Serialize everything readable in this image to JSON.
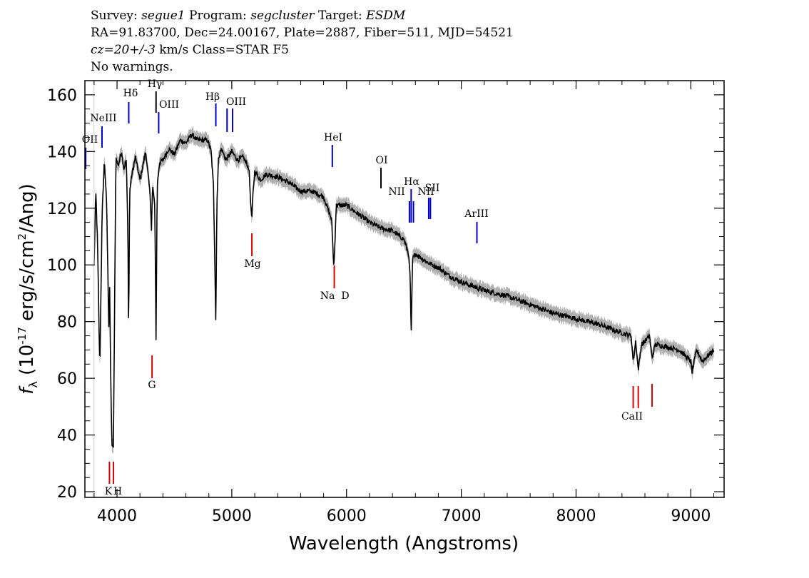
{
  "header": {
    "survey_label": "Survey:",
    "survey": "segue1",
    "program_label": "Program:",
    "program": "segcluster",
    "target_label": "Target:",
    "target": "ESDM",
    "line2": "RA=91.83700, Dec=24.00167, Plate=2887, Fiber=511, MJD=54521",
    "cz_value": "cz=20+/-3",
    "cz_rest": "km/s Class=STAR F5",
    "line4": "No warnings."
  },
  "chart_data": {
    "type": "line",
    "title": "",
    "xlabel": "Wavelength (Angstroms)",
    "ylabel": "f_λ (10^-17 erg/s/cm^2/Ang)",
    "xlim": [
      3720,
      9290
    ],
    "ylim": [
      18,
      165
    ],
    "xticks": [
      4000,
      5000,
      6000,
      7000,
      8000,
      9000
    ],
    "yticks": [
      20,
      40,
      60,
      80,
      100,
      120,
      140,
      160
    ],
    "grid": false,
    "colors": {
      "flux": "#000000",
      "error": "#b0b0b0",
      "emission": "#0000cc",
      "absorption": "#dd0000"
    },
    "series": [
      {
        "x": [
          3800,
          3815,
          3830,
          3850,
          3870,
          3890,
          3910,
          3930,
          3935,
          3945,
          3955,
          3968,
          3975,
          3990,
          4010,
          4040,
          4060,
          4080,
          4095,
          4101,
          4110,
          4130,
          4160,
          4200,
          4250,
          4290,
          4300,
          4310,
          4330,
          4340,
          4350,
          4370,
          4400,
          4450,
          4500,
          4550,
          4600,
          4650,
          4700,
          4750,
          4790,
          4820,
          4840,
          4855,
          4861,
          4870,
          4885,
          4910,
          4950,
          5000,
          5050,
          5100,
          5150,
          5167,
          5175,
          5183,
          5200,
          5250,
          5300,
          5400,
          5500,
          5600,
          5700,
          5800,
          5870,
          5889,
          5895,
          5910,
          6000,
          6100,
          6200,
          6300,
          6400,
          6500,
          6540,
          6555,
          6563,
          6575,
          6600,
          6700,
          6800,
          6900,
          7000,
          7200,
          7400,
          7600,
          7800,
          8000,
          8200,
          8400,
          8480,
          8498,
          8520,
          8542,
          8570,
          8600,
          8640,
          8662,
          8690,
          8800,
          8900,
          9000,
          9010,
          9050,
          9100,
          9150,
          9200
        ],
        "y": [
          100,
          126,
          108,
          63,
          118,
          137,
          121,
          74,
          96,
          60,
          37,
          35,
          66,
          138,
          135,
          140,
          134,
          137,
          112,
          75,
          126,
          132,
          138,
          130,
          140,
          124,
          112,
          128,
          120,
          74,
          128,
          136,
          137,
          141,
          139,
          144,
          143,
          146,
          144,
          144,
          144,
          140,
          128,
          95,
          78,
          122,
          138,
          141,
          137,
          140,
          137,
          138,
          134,
          120,
          116,
          124,
          133,
          130,
          132,
          131,
          129,
          126,
          126,
          124,
          116,
          99,
          104,
          121,
          121,
          118,
          115,
          113,
          112,
          109,
          104,
          95,
          74,
          102,
          104,
          101,
          99,
          96,
          94,
          91,
          89,
          86,
          83,
          81,
          79,
          76,
          75,
          66,
          73,
          63,
          72,
          73,
          75,
          67,
          72,
          71,
          70,
          66,
          62,
          70,
          66,
          68,
          70
        ]
      }
    ],
    "emission_lines": [
      {
        "label": "OII",
        "x": 3727
      },
      {
        "label": "NeIII",
        "x": 3869
      },
      {
        "label": "Hδ",
        "x": 4102
      },
      {
        "label": "Hγ",
        "x": 4340
      },
      {
        "label": "OIII",
        "x": 4363
      },
      {
        "label": "Hβ",
        "x": 4861
      },
      {
        "label": "OIII",
        "x": 4959
      },
      {
        "label": "",
        "x": 5007
      },
      {
        "label": "HeI",
        "x": 5876
      },
      {
        "label": "OI",
        "x": 6300
      },
      {
        "label": "NII",
        "x": 6548
      },
      {
        "label": "Hα",
        "x": 6563
      },
      {
        "label": "",
        "x": 6583
      },
      {
        "label": "NII",
        "x": 6716
      },
      {
        "label": "SII",
        "x": 6731
      },
      {
        "label": "ArIII",
        "x": 7136
      }
    ],
    "absorption_lines": [
      {
        "label": "K",
        "x": 3934
      },
      {
        "label": "H",
        "x": 3969
      },
      {
        "label": "G",
        "x": 4305
      },
      {
        "label": "Mg",
        "x": 5175
      },
      {
        "label": "Na",
        "x": 5893
      },
      {
        "label": "D",
        "x": 5893
      },
      {
        "label": "CaII",
        "x": 8498
      },
      {
        "label": "",
        "x": 8542
      },
      {
        "label": "",
        "x": 8662
      }
    ]
  }
}
